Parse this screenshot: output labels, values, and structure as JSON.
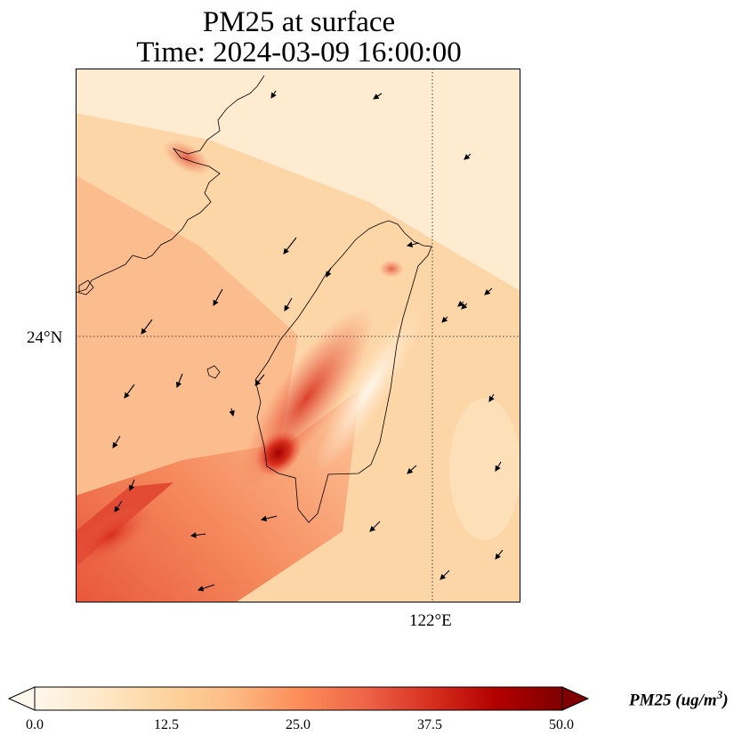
{
  "figure": {
    "title_line1": "PM25 at surface",
    "title_line2": "Time: 2024-03-09 16:00:00"
  },
  "map": {
    "lat_tick_label": "24°N",
    "lon_tick_label": "122°E",
    "gridlines": true,
    "colormap": "OrRd"
  },
  "colorbar": {
    "label": "PM25 (ug/m",
    "label_superscript": "3",
    "label_close": ")",
    "ticks": [
      "0.0",
      "12.5",
      "25.0",
      "37.5",
      "50.0"
    ],
    "min": 0,
    "max": 50,
    "extend": "both",
    "colors": [
      "#fff7ec",
      "#fee8c8",
      "#fdd49e",
      "#fdbb84",
      "#fc8d59",
      "#ef6548",
      "#d7301f",
      "#b30000",
      "#7f0000"
    ]
  }
}
